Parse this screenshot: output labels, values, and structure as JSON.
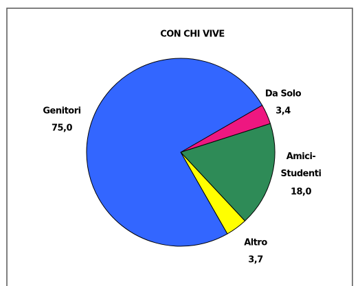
{
  "chart_data": {
    "type": "pie",
    "title": "CON CHI VIVE",
    "categories": [
      "Da Solo",
      "Amici-Studenti",
      "Altro",
      "Genitori"
    ],
    "values": [
      3.4,
      18.0,
      3.7,
      75.0
    ],
    "value_labels": [
      "3,4",
      "18,0",
      "3,7",
      "75,0"
    ],
    "colors": [
      "#ee1780",
      "#2e8b57",
      "#ffff00",
      "#3366ff"
    ]
  }
}
